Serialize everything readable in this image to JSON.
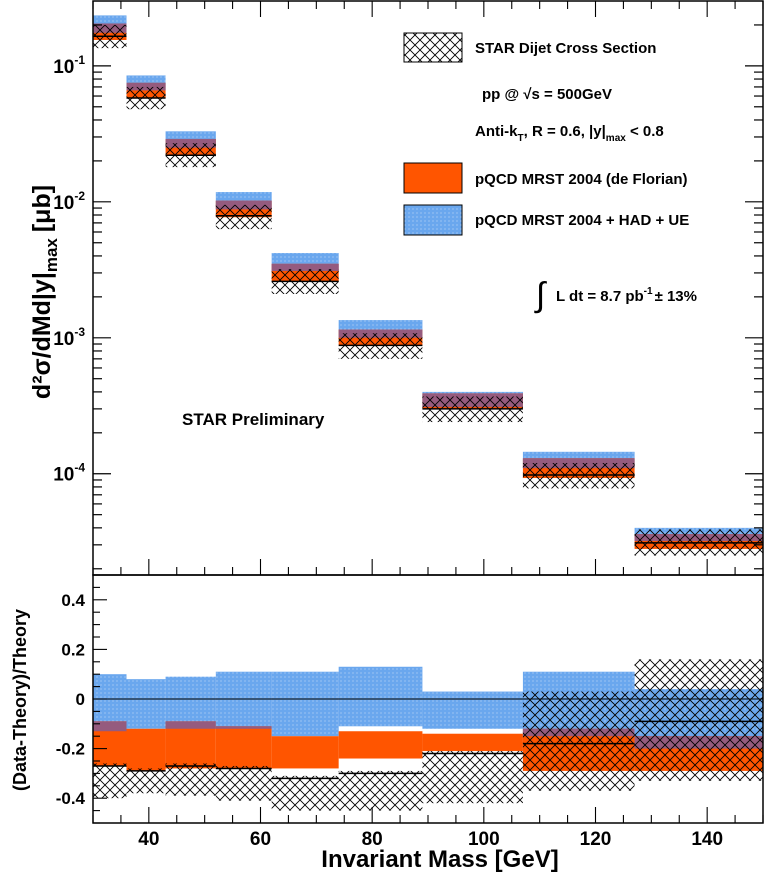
{
  "chart_data": [
    {
      "type": "bar",
      "panel": "upper",
      "ylabel_main": "d²σ/dMd|y|",
      "ylabel_sub": "max",
      "ylabel_unit": "[μb]",
      "yscale": "log",
      "ylim": [
        1.8e-05,
        0.3
      ],
      "xlim": [
        30,
        150
      ],
      "y_ticks": [
        {
          "value": 0.1,
          "base": "10",
          "exp": "-1"
        },
        {
          "value": 0.01,
          "base": "10",
          "exp": "-2"
        },
        {
          "value": 0.001,
          "base": "10",
          "exp": "-3"
        },
        {
          "value": 0.0001,
          "base": "10",
          "exp": "-4"
        }
      ],
      "bins": [
        {
          "lo": 30,
          "hi": 36,
          "data": 0.165,
          "data_lo": 0.135,
          "data_hi": 0.2,
          "pqcd": 0.18,
          "pqcd_lo": 0.155,
          "pqcd_hi": 0.205,
          "had": 0.205,
          "had_lo": 0.175,
          "had_hi": 0.235
        },
        {
          "lo": 36,
          "hi": 43,
          "data": 0.058,
          "data_lo": 0.048,
          "data_hi": 0.07,
          "pqcd": 0.066,
          "pqcd_lo": 0.058,
          "pqcd_hi": 0.075,
          "had": 0.075,
          "had_lo": 0.066,
          "had_hi": 0.085
        },
        {
          "lo": 43,
          "hi": 52,
          "data": 0.022,
          "data_lo": 0.018,
          "data_hi": 0.027,
          "pqcd": 0.026,
          "pqcd_lo": 0.022,
          "pqcd_hi": 0.029,
          "had": 0.029,
          "had_lo": 0.025,
          "had_hi": 0.033
        },
        {
          "lo": 52,
          "hi": 62,
          "data": 0.0079,
          "data_lo": 0.0063,
          "data_hi": 0.0095,
          "pqcd": 0.009,
          "pqcd_lo": 0.0077,
          "pqcd_hi": 0.0102,
          "had": 0.0103,
          "had_lo": 0.0088,
          "had_hi": 0.0118
        },
        {
          "lo": 62,
          "hi": 74,
          "data": 0.0026,
          "data_lo": 0.0021,
          "data_hi": 0.0032,
          "pqcd": 0.0031,
          "pqcd_lo": 0.0026,
          "pqcd_hi": 0.0035,
          "had": 0.0036,
          "had_lo": 0.0031,
          "had_hi": 0.0042
        },
        {
          "lo": 74,
          "hi": 89,
          "data": 0.00088,
          "data_lo": 0.0007,
          "data_hi": 0.00108,
          "pqcd": 0.001,
          "pqcd_lo": 0.00088,
          "pqcd_hi": 0.00115,
          "had": 0.00118,
          "had_lo": 0.001,
          "had_hi": 0.00135
        },
        {
          "lo": 89,
          "hi": 107,
          "data": 0.0003,
          "data_lo": 0.00024,
          "data_hi": 0.00037,
          "pqcd": 0.00035,
          "pqcd_lo": 0.0003,
          "pqcd_hi": 0.00039,
          "had": 0.00036,
          "had_lo": 0.00031,
          "had_hi": 0.0004
        },
        {
          "lo": 107,
          "hi": 127,
          "data": 9.8e-05,
          "data_lo": 7.8e-05,
          "data_hi": 0.00012,
          "pqcd": 0.000108,
          "pqcd_lo": 9.3e-05,
          "pqcd_hi": 0.00013,
          "had": 0.000125,
          "had_lo": 0.00011,
          "had_hi": 0.000145
        },
        {
          "lo": 127,
          "hi": 150,
          "data": 3.1e-05,
          "data_lo": 2.5e-05,
          "data_hi": 3.9e-05,
          "pqcd": 3.3e-05,
          "pqcd_lo": 2.8e-05,
          "pqcd_hi": 3.6e-05,
          "had": 3.7e-05,
          "had_lo": 3.2e-05,
          "had_hi": 4e-05
        }
      ],
      "legend": [
        {
          "style": "hatched",
          "label": "STAR Dijet Cross Section"
        },
        {
          "style": "none",
          "label": "pp @ √s = 500GeV"
        },
        {
          "style": "none",
          "label_main": "Anti-k",
          "label_sub_t": "T",
          "label_mid": ", R = 0.6,  |y|",
          "label_sub_max": "max",
          "label_tail": " < 0.8"
        },
        {
          "style": "orange",
          "label": "pQCD MRST 2004 (de Florian)"
        },
        {
          "style": "blue",
          "label": "pQCD MRST 2004 + HAD + UE"
        }
      ],
      "lumi": {
        "prefix": "L dt  = 8.7 pb",
        "exp": "-1",
        "suffix": "± 13%"
      },
      "annotation": "STAR Preliminary"
    },
    {
      "type": "bar",
      "panel": "lower",
      "ylabel": "(Data-Theory)/Theory",
      "xlabel": "Invariant Mass [GeV]",
      "xlim": [
        30,
        150
      ],
      "ylim": [
        -0.5,
        0.5
      ],
      "x_ticks": [
        40,
        60,
        80,
        100,
        120,
        140
      ],
      "y_ticks": [
        {
          "value": 0.4,
          "label": "0.4"
        },
        {
          "value": 0.2,
          "label": "0.2"
        },
        {
          "value": 0,
          "label": "0"
        },
        {
          "value": -0.2,
          "label": "-0.2"
        },
        {
          "value": -0.4,
          "label": "-0.4"
        }
      ],
      "bins": [
        {
          "lo": 30,
          "hi": 36,
          "data": -0.27,
          "data_lo": -0.4,
          "data_hi": -0.26,
          "pqcd_lo": -0.27,
          "pqcd_hi": -0.09,
          "had_lo": -0.13,
          "had_hi": 0.1
        },
        {
          "lo": 36,
          "hi": 43,
          "data": -0.29,
          "data_lo": -0.38,
          "data_hi": -0.28,
          "pqcd_lo": -0.29,
          "pqcd_hi": -0.12,
          "had_lo": -0.12,
          "had_hi": 0.08
        },
        {
          "lo": 43,
          "hi": 52,
          "data": -0.27,
          "data_lo": -0.39,
          "data_hi": -0.26,
          "pqcd_lo": -0.28,
          "pqcd_hi": -0.09,
          "had_lo": -0.12,
          "had_hi": 0.09
        },
        {
          "lo": 52,
          "hi": 62,
          "data": -0.28,
          "data_lo": -0.41,
          "data_hi": -0.27,
          "pqcd_lo": -0.28,
          "pqcd_hi": -0.11,
          "had_lo": -0.12,
          "had_hi": 0.11
        },
        {
          "lo": 62,
          "hi": 74,
          "data": -0.32,
          "data_lo": -0.45,
          "data_hi": -0.31,
          "pqcd_lo": -0.28,
          "pqcd_hi": -0.15,
          "had_lo": -0.15,
          "had_hi": 0.11
        },
        {
          "lo": 74,
          "hi": 89,
          "data": -0.3,
          "data_lo": -0.45,
          "data_hi": -0.29,
          "pqcd_lo": -0.24,
          "pqcd_hi": -0.13,
          "had_lo": -0.11,
          "had_hi": 0.13
        },
        {
          "lo": 89,
          "hi": 107,
          "data": -0.22,
          "data_lo": -0.42,
          "data_hi": -0.21,
          "pqcd_lo": -0.21,
          "pqcd_hi": -0.14,
          "had_lo": -0.12,
          "had_hi": 0.03
        },
        {
          "lo": 107,
          "hi": 127,
          "data": -0.18,
          "data_lo": -0.37,
          "data_hi": 0.03,
          "pqcd_lo": -0.29,
          "pqcd_hi": -0.12,
          "had_lo": -0.15,
          "had_hi": 0.11
        },
        {
          "lo": 127,
          "hi": 150,
          "data": -0.09,
          "data_lo": -0.33,
          "data_hi": 0.16,
          "pqcd_lo": -0.29,
          "pqcd_hi": -0.15,
          "had_lo": -0.2,
          "had_hi": 0.04
        }
      ]
    }
  ],
  "colors": {
    "orange": "#ff5500",
    "blue": "#6aa7ee",
    "purple": "#8a5c8c",
    "hatch": "#000000",
    "frame": "#000000"
  }
}
